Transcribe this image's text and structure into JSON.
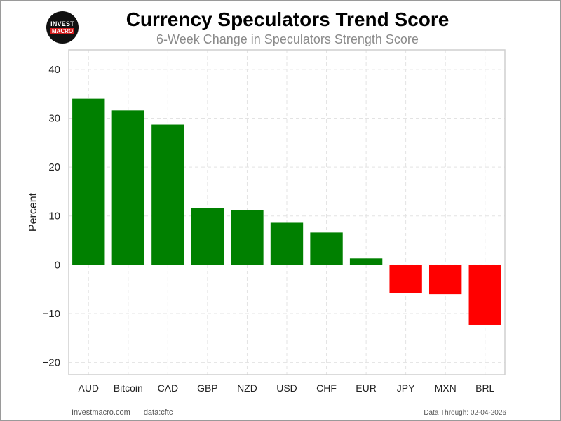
{
  "logo": {
    "line1": "INVEST",
    "line2": "MACRO"
  },
  "footer": {
    "site": "Investmacro.com",
    "source": "data:cftc",
    "data_through": "Data Through: 02-04-2026"
  },
  "chart_data": {
    "type": "bar",
    "title": "Currency Speculators Trend Score",
    "subtitle": "6-Week Change in Speculators Strength Score",
    "xlabel": "",
    "ylabel": "Percent",
    "categories": [
      "AUD",
      "Bitcoin",
      "CAD",
      "GBP",
      "NZD",
      "USD",
      "CHF",
      "EUR",
      "JPY",
      "MXN",
      "BRL"
    ],
    "values": [
      34.0,
      31.6,
      28.7,
      11.6,
      11.2,
      8.6,
      6.6,
      1.3,
      -5.8,
      -6.0,
      -12.3
    ],
    "ylim": [
      -22.5,
      44
    ],
    "yticks": [
      40,
      30,
      20,
      10,
      0,
      -10,
      -20
    ],
    "ytick_labels": [
      "40",
      "30",
      "20",
      "10",
      "0",
      "−10",
      "−20"
    ],
    "grid": true,
    "colors": {
      "positive": "#008000",
      "negative": "#ff0000",
      "grid": "#e3e3e3",
      "axes_border": "#cfcfcf"
    }
  }
}
